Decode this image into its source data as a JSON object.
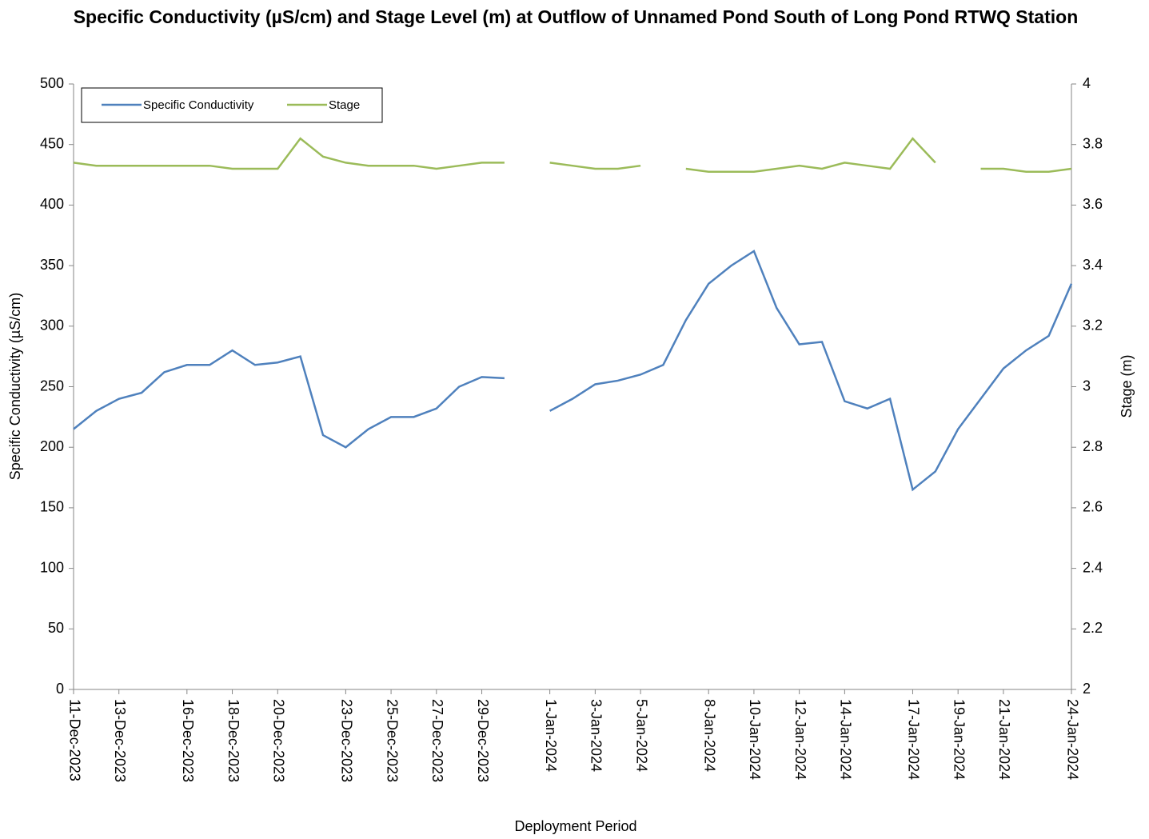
{
  "chart_data": {
    "type": "line",
    "title": "Specific Conductivity (µS/cm) and Stage Level (m) at Outflow of Unnamed Pond South of Long Pond RTWQ Station",
    "x_label": "Deployment Period",
    "y_label": "Specific Conductivity (µS/cm)",
    "y2_label": "Stage (m)",
    "x": [
      "2023-12-11",
      "2023-12-12",
      "2023-12-13",
      "2023-12-14",
      "2023-12-15",
      "2023-12-16",
      "2023-12-17",
      "2023-12-18",
      "2023-12-19",
      "2023-12-20",
      "2023-12-21",
      "2023-12-22",
      "2023-12-23",
      "2023-12-24",
      "2023-12-25",
      "2023-12-26",
      "2023-12-27",
      "2023-12-28",
      "2023-12-29",
      "2023-12-30",
      "2023-12-31",
      "2024-01-01",
      "2024-01-02",
      "2024-01-03",
      "2024-01-04",
      "2024-01-05",
      "2024-01-06",
      "2024-01-07",
      "2024-01-08",
      "2024-01-09",
      "2024-01-10",
      "2024-01-11",
      "2024-01-12",
      "2024-01-13",
      "2024-01-14",
      "2024-01-15",
      "2024-01-16",
      "2024-01-17",
      "2024-01-18",
      "2024-01-19",
      "2024-01-20",
      "2024-01-21",
      "2024-01-22",
      "2024-01-23",
      "2024-01-24"
    ],
    "series": [
      {
        "name": "Specific Conductivity",
        "color": "#4f81bd",
        "axis": "y",
        "values": [
          215,
          230,
          240,
          245,
          262,
          268,
          268,
          280,
          268,
          270,
          275,
          210,
          200,
          215,
          225,
          225,
          232,
          250,
          258,
          257,
          null,
          230,
          240,
          252,
          255,
          260,
          268,
          305,
          335,
          350,
          362,
          315,
          285,
          287,
          238,
          232,
          240,
          165,
          180,
          215,
          240,
          265,
          280,
          292,
          335
        ]
      },
      {
        "name": "Stage",
        "color": "#9bbb59",
        "axis": "y2",
        "values": [
          3.74,
          3.73,
          3.73,
          3.73,
          3.73,
          3.73,
          3.73,
          3.72,
          3.72,
          3.72,
          3.82,
          3.76,
          3.74,
          3.73,
          3.73,
          3.73,
          3.72,
          3.73,
          3.74,
          3.74,
          null,
          3.74,
          3.73,
          3.72,
          3.72,
          3.73,
          null,
          3.72,
          3.71,
          3.71,
          3.71,
          3.72,
          3.73,
          3.72,
          3.74,
          3.73,
          3.72,
          3.82,
          3.74,
          null,
          3.72,
          3.72,
          3.71,
          3.71,
          3.72
        ]
      }
    ],
    "xlim": [
      "2023-12-11",
      "2024-01-24"
    ],
    "xticks": [
      {
        "value": "2023-12-11",
        "label": "11-Dec-2023"
      },
      {
        "value": "2023-12-13",
        "label": "13-Dec-2023"
      },
      {
        "value": "2023-12-16",
        "label": "16-Dec-2023"
      },
      {
        "value": "2023-12-18",
        "label": "18-Dec-2023"
      },
      {
        "value": "2023-12-20",
        "label": "20-Dec-2023"
      },
      {
        "value": "2023-12-23",
        "label": "23-Dec-2023"
      },
      {
        "value": "2023-12-25",
        "label": "25-Dec-2023"
      },
      {
        "value": "2023-12-27",
        "label": "27-Dec-2023"
      },
      {
        "value": "2023-12-29",
        "label": "29-Dec-2023"
      },
      {
        "value": "2024-01-01",
        "label": "1-Jan-2024"
      },
      {
        "value": "2024-01-03",
        "label": "3-Jan-2024"
      },
      {
        "value": "2024-01-05",
        "label": "5-Jan-2024"
      },
      {
        "value": "2024-01-08",
        "label": "8-Jan-2024"
      },
      {
        "value": "2024-01-10",
        "label": "10-Jan-2024"
      },
      {
        "value": "2024-01-12",
        "label": "12-Jan-2024"
      },
      {
        "value": "2024-01-14",
        "label": "14-Jan-2024"
      },
      {
        "value": "2024-01-17",
        "label": "17-Jan-2024"
      },
      {
        "value": "2024-01-19",
        "label": "19-Jan-2024"
      },
      {
        "value": "2024-01-21",
        "label": "21-Jan-2024"
      },
      {
        "value": "2024-01-24",
        "label": "24-Jan-2024"
      }
    ],
    "ylim": [
      0,
      500
    ],
    "yticks": [
      0,
      50,
      100,
      150,
      200,
      250,
      300,
      350,
      400,
      450,
      500
    ],
    "y2lim": [
      2,
      4
    ],
    "y2ticks": [
      2,
      2.2,
      2.4,
      2.6,
      2.8,
      3,
      3.2,
      3.4,
      3.6,
      3.8,
      4
    ],
    "legend": "upper left"
  }
}
